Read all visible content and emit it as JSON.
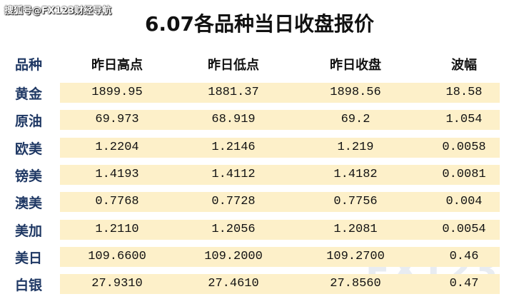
{
  "watermark": "搜狐号@FX123财经导航",
  "title": "6.07各品种当日收盘报价",
  "background_mark": "FX123",
  "table": {
    "header": [
      "品种",
      "昨日高点",
      "昨日低点",
      "昨日收盘",
      "波幅"
    ],
    "rows": [
      [
        "黄金",
        "1899.95",
        "1881.37",
        "1898.56",
        "18.58"
      ],
      [
        "原油",
        "69.973",
        "68.919",
        "69.2",
        "1.054"
      ],
      [
        "欧美",
        "1.2204",
        "1.2146",
        "1.219",
        "0.0058"
      ],
      [
        "镑美",
        "1.4193",
        "1.4112",
        "1.4182",
        "0.0081"
      ],
      [
        "澳美",
        "0.7768",
        "0.7728",
        "0.7756",
        "0.004"
      ],
      [
        "美加",
        "1.2110",
        "1.2056",
        "1.2081",
        "0.0054"
      ],
      [
        "美日",
        "109.6600",
        "109.2000",
        "109.2700",
        "0.46"
      ],
      [
        "白银",
        "27.9310",
        "27.4610",
        "27.8560",
        "0.47"
      ]
    ]
  }
}
